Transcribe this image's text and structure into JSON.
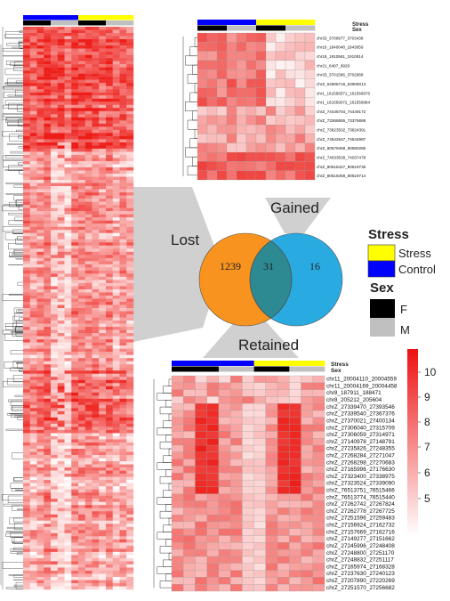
{
  "colors": {
    "stress": "#ffff00",
    "control": "#0000ff",
    "female": "#000000",
    "male": "#c0c0c0",
    "lost_circle": "#f7931e",
    "gained_circle": "#29abe2",
    "overlap": "#2e8a92",
    "heat_high": "#ee1111",
    "heat_low": "#ffffff"
  },
  "venn": {
    "lost_label": "Lost",
    "gained_label": "Gained",
    "retained_label": "Retained",
    "lost_count": "1239",
    "shared_count": "31",
    "gained_count": "16"
  },
  "legend": {
    "stress_title": "Stress",
    "stress_items": [
      {
        "label": "Stress",
        "color": "#ffff00"
      },
      {
        "label": "Control",
        "color": "#0000ff"
      }
    ],
    "sex_title": "Sex",
    "sex_items": [
      {
        "label": "F",
        "color": "#000000"
      },
      {
        "label": "M",
        "color": "#c0c0c0"
      }
    ]
  },
  "colorbar": {
    "ticks": [
      "10",
      "9",
      "8",
      "7",
      "6",
      "5"
    ]
  },
  "top_heatmap": {
    "annotation_labels": [
      "Stress",
      "Sex"
    ],
    "row_labels": [
      "chr33_3700977_3703438",
      "chr16_1840048_1843059",
      "chr18_1910561_1910914",
      "chr21_6497_9929",
      "chr33_3701586_3702668",
      "chrZ_54905716_54906013",
      "chr1_161556571_161556976",
      "chr1_161559072_161559984",
      "chrZ_74446704_74449172",
      "chrZ_73368855_73376688",
      "chrZ_73823502_73824391",
      "chrZ_74542647_74544987",
      "chrZ_80579458_80580285",
      "chrZ_74033539_74037478",
      "chrZ_80518427_80519736",
      "chrZ_80518458_80519714"
    ]
  },
  "bottom_heatmap": {
    "annotation_labels": [
      "Stress",
      "Sex"
    ],
    "row_labels": [
      "chr11_20004110_20004559",
      "chr11_20004169_20004458",
      "chr8_187911_188471",
      "chr8_205212_205604",
      "chrZ_27339470_27393546",
      "chrZ_27339540_27367376",
      "chrZ_27370021_27400134",
      "chrZ_27306040_27315709",
      "chrZ_27306059_27314971",
      "chrZ_27140978_27148791",
      "chrZ_27235826_27248355",
      "chrZ_27268284_27271047",
      "chrZ_27268298_27270683",
      "chrZ_27165996_27176630",
      "chrZ_27323400_27338975",
      "chrZ_27323524_27339090",
      "chrZ_76513751_76515466",
      "chrZ_76513774_76515440",
      "chrZ_27262742_27267824",
      "chrZ_27262778_27267725",
      "chrZ_27251596_27259483",
      "chrZ_27156924_27162732",
      "chrZ_27157669_27162716",
      "chrZ_27149277_27151662",
      "chrZ_27245996_27248408",
      "chrZ_27248800_27251170",
      "chrZ_27248832_27251117",
      "chrZ_27165974_27168328",
      "chrZ_27237630_27240123",
      "chrZ_27207890_27220269",
      "chrZ_27251570_27256682"
    ]
  }
}
